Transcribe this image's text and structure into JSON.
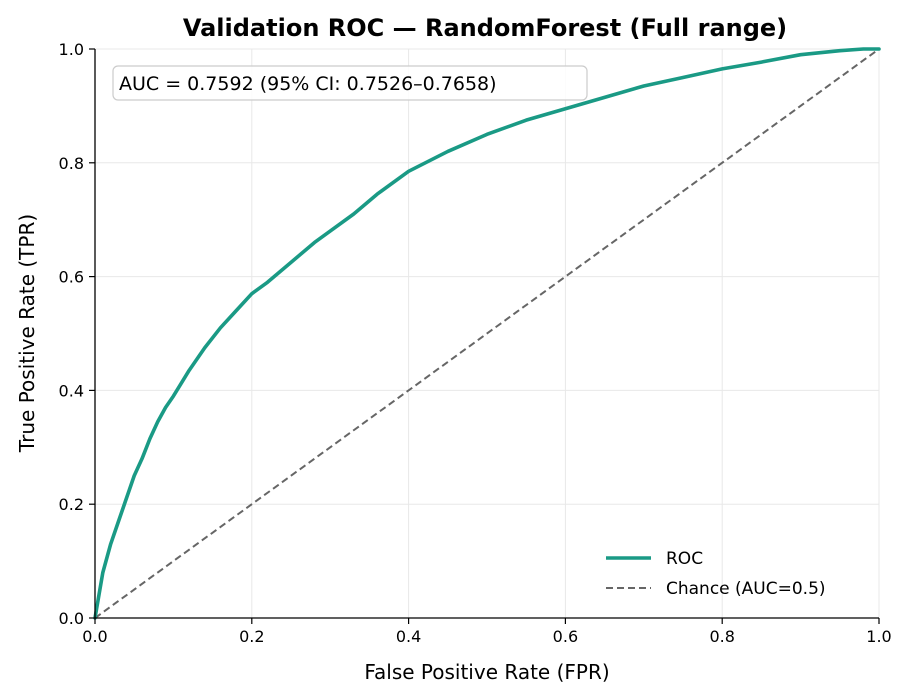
{
  "chart_data": {
    "type": "line",
    "title": "Validation ROC — RandomForest (Full range)",
    "xlabel": "False Positive Rate (FPR)",
    "ylabel": "True Positive Rate (TPR)",
    "xlim": [
      0,
      1
    ],
    "ylim": [
      0,
      1
    ],
    "xticks": [
      "0.0",
      "0.2",
      "0.4",
      "0.6",
      "0.8",
      "1.0"
    ],
    "yticks": [
      "0.0",
      "0.2",
      "0.4",
      "0.6",
      "0.8",
      "1.0"
    ],
    "grid": true,
    "legend_position": "bottom-right",
    "annotation": "AUC = 0.7592  (95% CI: 0.7526–0.7658)",
    "series": [
      {
        "name": "ROC",
        "color": "#1a9a85",
        "style": "solid",
        "x": [
          0.0,
          0.005,
          0.01,
          0.02,
          0.03,
          0.04,
          0.05,
          0.06,
          0.07,
          0.08,
          0.09,
          0.1,
          0.12,
          0.14,
          0.16,
          0.18,
          0.2,
          0.22,
          0.25,
          0.28,
          0.3,
          0.33,
          0.36,
          0.4,
          0.45,
          0.5,
          0.55,
          0.6,
          0.65,
          0.7,
          0.75,
          0.8,
          0.85,
          0.9,
          0.95,
          0.98,
          1.0
        ],
        "y": [
          0.0,
          0.04,
          0.08,
          0.13,
          0.17,
          0.21,
          0.25,
          0.28,
          0.315,
          0.345,
          0.37,
          0.39,
          0.435,
          0.475,
          0.51,
          0.54,
          0.57,
          0.59,
          0.625,
          0.66,
          0.68,
          0.71,
          0.745,
          0.785,
          0.82,
          0.85,
          0.875,
          0.895,
          0.915,
          0.935,
          0.95,
          0.965,
          0.977,
          0.99,
          0.997,
          1.0,
          1.0
        ]
      },
      {
        "name": "Chance (AUC=0.5)",
        "color": "#666666",
        "style": "dashed",
        "x": [
          0,
          1
        ],
        "y": [
          0,
          1
        ]
      }
    ]
  }
}
